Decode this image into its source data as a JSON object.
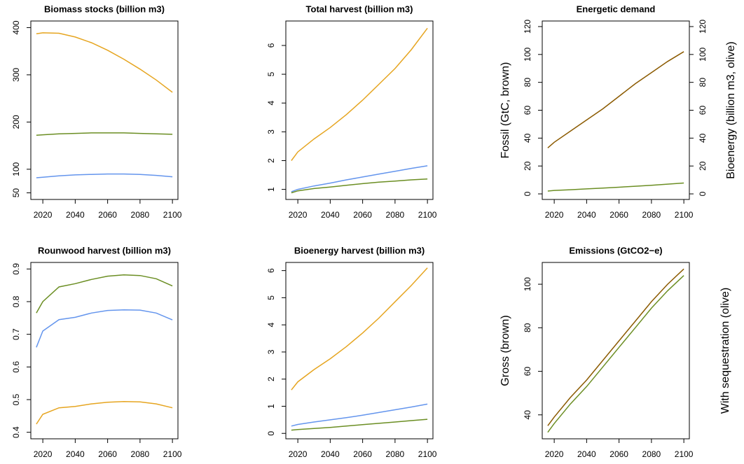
{
  "chart_data": [
    {
      "type": "line",
      "title": "Biomass stocks (billion m3)",
      "x": [
        2016,
        2020,
        2030,
        2040,
        2050,
        2060,
        2070,
        2080,
        2090,
        2100
      ],
      "xlim": [
        2012.6,
        2103.4
      ],
      "xticks": [
        2020,
        2040,
        2060,
        2080,
        2100
      ],
      "ylim": [
        36,
        414
      ],
      "yticks": [
        50,
        100,
        200,
        300,
        400
      ],
      "series": [
        {
          "color": "#E6A520",
          "values": [
            387,
            389,
            388,
            380,
            368,
            352,
            333,
            312,
            289,
            263
          ]
        },
        {
          "color": "#6B8E23",
          "values": [
            172,
            173,
            175,
            176,
            177,
            177,
            177,
            176,
            175,
            174
          ]
        },
        {
          "color": "#6495ED",
          "values": [
            82,
            83,
            86,
            88,
            89,
            90,
            90,
            89,
            87,
            84
          ]
        }
      ]
    },
    {
      "type": "line",
      "title": "Total harvest (billion m3)",
      "x": [
        2016,
        2020,
        2030,
        2040,
        2050,
        2060,
        2070,
        2080,
        2090,
        2100
      ],
      "xlim": [
        2012.6,
        2103.4
      ],
      "xticks": [
        2020,
        2040,
        2060,
        2080,
        2100
      ],
      "ylim": [
        0.65,
        6.85
      ],
      "yticks": [
        1,
        2,
        3,
        4,
        5,
        6
      ],
      "series": [
        {
          "color": "#E6A520",
          "values": [
            2.0,
            2.3,
            2.75,
            3.15,
            3.6,
            4.1,
            4.65,
            5.2,
            5.85,
            6.6
          ]
        },
        {
          "color": "#6495ED",
          "values": [
            0.92,
            1.0,
            1.12,
            1.22,
            1.33,
            1.43,
            1.53,
            1.63,
            1.73,
            1.82
          ]
        },
        {
          "color": "#6B8E23",
          "values": [
            0.88,
            0.95,
            1.03,
            1.08,
            1.14,
            1.2,
            1.25,
            1.29,
            1.33,
            1.36
          ]
        }
      ]
    },
    {
      "type": "line",
      "title": "Energetic demand",
      "ylabel": "Fossil (GtC, brown)",
      "y2label": "Bioenergy (billion m3, olive)",
      "x": [
        2016,
        2020,
        2030,
        2040,
        2050,
        2060,
        2070,
        2080,
        2090,
        2100
      ],
      "xlim": [
        2012.6,
        2103.4
      ],
      "xticks": [
        2020,
        2040,
        2060,
        2080,
        2100
      ],
      "ylim": [
        -4,
        124
      ],
      "yticks": [
        0,
        20,
        40,
        60,
        80,
        100,
        120
      ],
      "y2lim": [
        -4,
        124
      ],
      "y2ticks": [
        0,
        20,
        40,
        60,
        80,
        100,
        120
      ],
      "series": [
        {
          "color": "#8B5A00",
          "values": [
            33,
            37,
            45,
            53,
            61,
            70,
            79,
            87,
            95,
            102
          ]
        },
        {
          "color": "#6B8E23",
          "axis": "y2",
          "values": [
            2,
            2.5,
            3,
            3.6,
            4.2,
            4.8,
            5.5,
            6.2,
            7,
            7.8
          ]
        }
      ]
    },
    {
      "type": "line",
      "title": "Rounwood harvest (billion m3)",
      "x": [
        2016,
        2020,
        2030,
        2040,
        2050,
        2060,
        2070,
        2080,
        2090,
        2100
      ],
      "xlim": [
        2012.6,
        2103.4
      ],
      "xticks": [
        2020,
        2040,
        2060,
        2080,
        2100
      ],
      "ylim": [
        0.38,
        0.92
      ],
      "yticks": [
        0.4,
        0.5,
        0.6,
        0.7,
        0.8,
        0.9
      ],
      "series": [
        {
          "color": "#6B8E23",
          "values": [
            0.765,
            0.8,
            0.845,
            0.855,
            0.868,
            0.878,
            0.882,
            0.88,
            0.87,
            0.848
          ]
        },
        {
          "color": "#6495ED",
          "values": [
            0.66,
            0.71,
            0.745,
            0.752,
            0.765,
            0.773,
            0.775,
            0.774,
            0.765,
            0.744
          ]
        },
        {
          "color": "#E6A520",
          "values": [
            0.425,
            0.455,
            0.475,
            0.479,
            0.487,
            0.492,
            0.494,
            0.493,
            0.487,
            0.475
          ]
        }
      ]
    },
    {
      "type": "line",
      "title": "Bioenergy harvest (billion m3)",
      "x": [
        2016,
        2020,
        2030,
        2040,
        2050,
        2060,
        2070,
        2080,
        2090,
        2100
      ],
      "xlim": [
        2012.6,
        2103.4
      ],
      "xticks": [
        2020,
        2040,
        2060,
        2080,
        2100
      ],
      "ylim": [
        -0.2,
        6.3
      ],
      "yticks": [
        0,
        1,
        2,
        3,
        4,
        5,
        6
      ],
      "series": [
        {
          "color": "#E6A520",
          "values": [
            1.6,
            1.9,
            2.35,
            2.75,
            3.2,
            3.7,
            4.25,
            4.85,
            5.45,
            6.1
          ]
        },
        {
          "color": "#6495ED",
          "values": [
            0.27,
            0.33,
            0.42,
            0.5,
            0.58,
            0.67,
            0.77,
            0.87,
            0.97,
            1.08
          ]
        },
        {
          "color": "#6B8E23",
          "values": [
            0.12,
            0.14,
            0.18,
            0.22,
            0.27,
            0.32,
            0.37,
            0.42,
            0.47,
            0.52
          ]
        }
      ]
    },
    {
      "type": "line",
      "title": "Emissions (GtCO2−e)",
      "ylabel": "Gross (brown)",
      "y2label": "With sequestration (olive)",
      "x": [
        2016,
        2020,
        2030,
        2040,
        2050,
        2060,
        2070,
        2080,
        2090,
        2100
      ],
      "xlim": [
        2012.6,
        2103.4
      ],
      "xticks": [
        2020,
        2040,
        2060,
        2080,
        2100
      ],
      "ylim": [
        29,
        110
      ],
      "yticks": [
        40,
        60,
        80,
        100
      ],
      "series": [
        {
          "color": "#8B5A00",
          "values": [
            35,
            39,
            48,
            56,
            65,
            74,
            83,
            92,
            100,
            107
          ]
        },
        {
          "color": "#6B8E23",
          "values": [
            32,
            36,
            45,
            53,
            62,
            71,
            80,
            89,
            97,
            104
          ]
        }
      ]
    }
  ]
}
